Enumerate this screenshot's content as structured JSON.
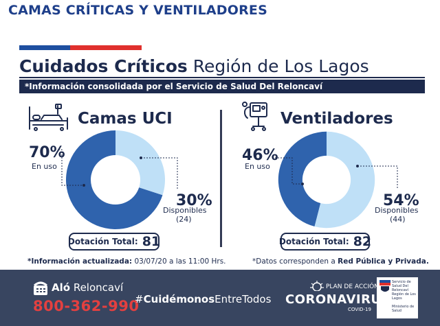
{
  "page_title": "CAMAS CRÍTICAS Y VENTILADORES",
  "heading_bold": "Cuidados Críticos",
  "heading_light": " Región de Los Lagos",
  "info_bar": "*Información consolidada por el Servicio de Salud Del Reloncaví",
  "camas": {
    "title": "Camas UCI",
    "used_pct": "70%",
    "used_label": "En uso",
    "avail_pct": "30%",
    "avail_label": "Disponibles",
    "avail_count": "(24)",
    "total_label": "Dotación Total:",
    "total_value": "81",
    "donut_used_fraction": 0.7
  },
  "ventiladores": {
    "title": "Ventiladores",
    "used_pct": "46%",
    "used_label": "En uso",
    "avail_pct": "54%",
    "avail_label": "Disponibles",
    "avail_count": "(44)",
    "total_label": "Dotación Total:",
    "total_value": "82",
    "donut_used_fraction": 0.46
  },
  "footnote_left_bold": "*Información actualizada:",
  "footnote_left_rest": " 03/07/20 a las 11:00 Hrs.",
  "footnote_right_pre": "*Datos corresponden a ",
  "footnote_right_bold": "Red Pública y Privada.",
  "footer": {
    "alo_bold": "Aló",
    "alo_rest": " Reloncaví",
    "phone": "800-362-990",
    "hashtag_pre": "#",
    "hashtag_bold": "Cuidémonos",
    "hashtag_rest": "EntreTodos",
    "plan": "PLAN DE ACCIÓN",
    "corona": "CORONAVIRUS",
    "covid": "COVID-19",
    "gob_text": "Servicio de\nSalud Del\nReloncaví\nRegión de Los Lagos\n\nMinisterio de\nSalud"
  },
  "colors": {
    "dark_blue": "#2f63ad",
    "light_blue": "#bfe0f7",
    "navy": "#1d2a4d",
    "red": "#e34040",
    "footer_bg": "#384560"
  },
  "icons": [
    "hospital-bed-icon",
    "ventilator-icon",
    "telephone-icon",
    "coronavirus-icon",
    "chile-shield-icon"
  ]
}
